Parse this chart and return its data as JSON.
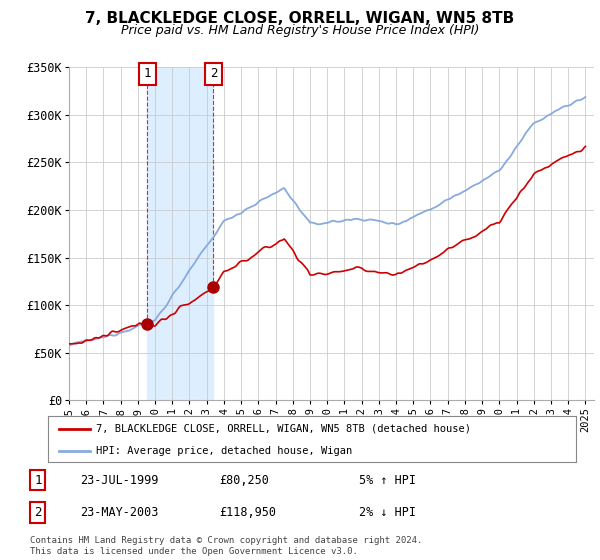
{
  "title": "7, BLACKLEDGE CLOSE, ORRELL, WIGAN, WN5 8TB",
  "subtitle": "Price paid vs. HM Land Registry's House Price Index (HPI)",
  "ylim": [
    0,
    350000
  ],
  "yticks": [
    0,
    50000,
    100000,
    150000,
    200000,
    250000,
    300000,
    350000
  ],
  "ytick_labels": [
    "£0",
    "£50K",
    "£100K",
    "£150K",
    "£200K",
    "£250K",
    "£300K",
    "£350K"
  ],
  "xlim_start": 1995,
  "xlim_end": 2025.5,
  "background_color": "#ffffff",
  "grid_color": "#cccccc",
  "sale1": {
    "date_num": 1999.56,
    "price": 80250,
    "label": "1"
  },
  "sale2": {
    "date_num": 2003.39,
    "price": 118950,
    "label": "2"
  },
  "shade_start": 1999.56,
  "shade_end": 2003.39,
  "legend_line1": "7, BLACKLEDGE CLOSE, ORRELL, WIGAN, WN5 8TB (detached house)",
  "legend_line2": "HPI: Average price, detached house, Wigan",
  "table_rows": [
    {
      "num": "1",
      "date": "23-JUL-1999",
      "price": "£80,250",
      "hpi": "5% ↑ HPI"
    },
    {
      "num": "2",
      "date": "23-MAY-2003",
      "price": "£118,950",
      "hpi": "2% ↓ HPI"
    }
  ],
  "footer": "Contains HM Land Registry data © Crown copyright and database right 2024.\nThis data is licensed under the Open Government Licence v3.0.",
  "line_color_red": "#cc0000",
  "line_color_blue": "#88aadd",
  "shade_color": "#ddeeff",
  "dot_color": "#aa0000"
}
